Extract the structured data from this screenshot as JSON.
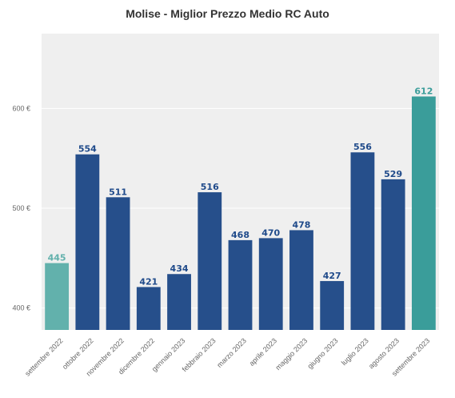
{
  "chart_data": {
    "type": "bar",
    "title": "Molise - Miglior Prezzo Medio RC Auto",
    "xlabel": "",
    "ylabel": "",
    "ylim": [
      378,
      675
    ],
    "yticks": [
      400,
      500,
      600
    ],
    "ytick_labels": [
      "400 €",
      "500 €",
      "600 €"
    ],
    "categories": [
      "settembre 2022",
      "ottobre 2022",
      "novembre 2022",
      "dicembre 2022",
      "gennaio 2023",
      "febbraio 2023",
      "marzo 2023",
      "aprile 2023",
      "maggio 2023",
      "giugno 2023",
      "luglio 2023",
      "agosto 2023",
      "settembre 2023"
    ],
    "values": [
      445,
      554,
      511,
      421,
      434,
      516,
      468,
      470,
      478,
      427,
      556,
      529,
      612
    ],
    "value_labels": [
      "445",
      "554",
      "511",
      "421",
      "434",
      "516",
      "468",
      "470",
      "478",
      "427",
      "556",
      "529",
      "612"
    ],
    "bar_colors": [
      "#62b1ac",
      "#264f8b",
      "#264f8b",
      "#264f8b",
      "#264f8b",
      "#264f8b",
      "#264f8b",
      "#264f8b",
      "#264f8b",
      "#264f8b",
      "#264f8b",
      "#264f8b",
      "#3a9d9a"
    ],
    "label_colors": [
      "#62b1ac",
      "#1f4a8a",
      "#1f4a8a",
      "#1f4a8a",
      "#1f4a8a",
      "#1f4a8a",
      "#1f4a8a",
      "#1f4a8a",
      "#1f4a8a",
      "#1f4a8a",
      "#1f4a8a",
      "#1f4a8a",
      "#3a9d9a"
    ],
    "grid": true,
    "background": "#efefef"
  }
}
